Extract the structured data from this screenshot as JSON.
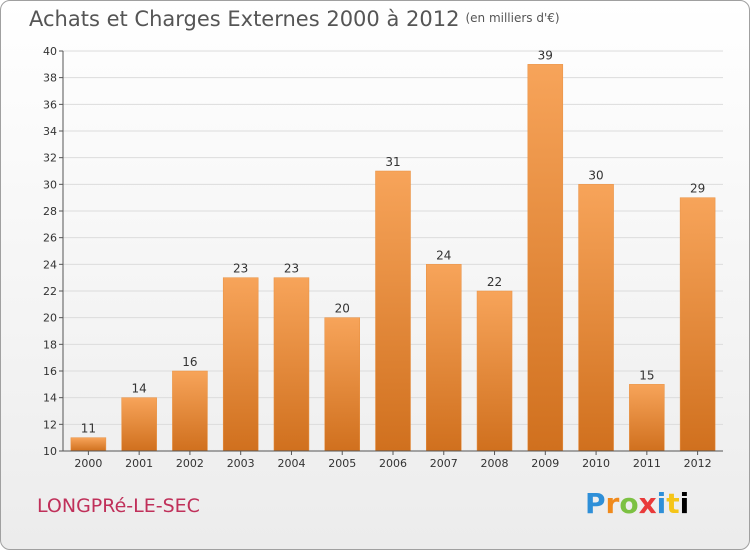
{
  "chart_data": {
    "type": "bar",
    "title": "Achats et Charges Externes 2000 à 2012",
    "subtitle": "(en milliers d'€)",
    "xlabel": "",
    "ylabel": "",
    "categories": [
      "2000",
      "2001",
      "2002",
      "2003",
      "2004",
      "2005",
      "2006",
      "2007",
      "2008",
      "2009",
      "2010",
      "2011",
      "2012"
    ],
    "values": [
      11,
      14,
      16,
      23,
      23,
      20,
      31,
      24,
      22,
      39,
      30,
      15,
      29
    ],
    "ylim": [
      10,
      40
    ],
    "yticks": [
      10,
      12,
      14,
      16,
      18,
      20,
      22,
      24,
      26,
      28,
      30,
      32,
      34,
      36,
      38,
      40
    ],
    "grid": true,
    "bar_color": "#f0963c"
  },
  "footer": {
    "city": "LONGPRé-LE-SEC",
    "logo": [
      "P",
      "r",
      "o",
      "x",
      "i",
      "t",
      "i"
    ]
  }
}
